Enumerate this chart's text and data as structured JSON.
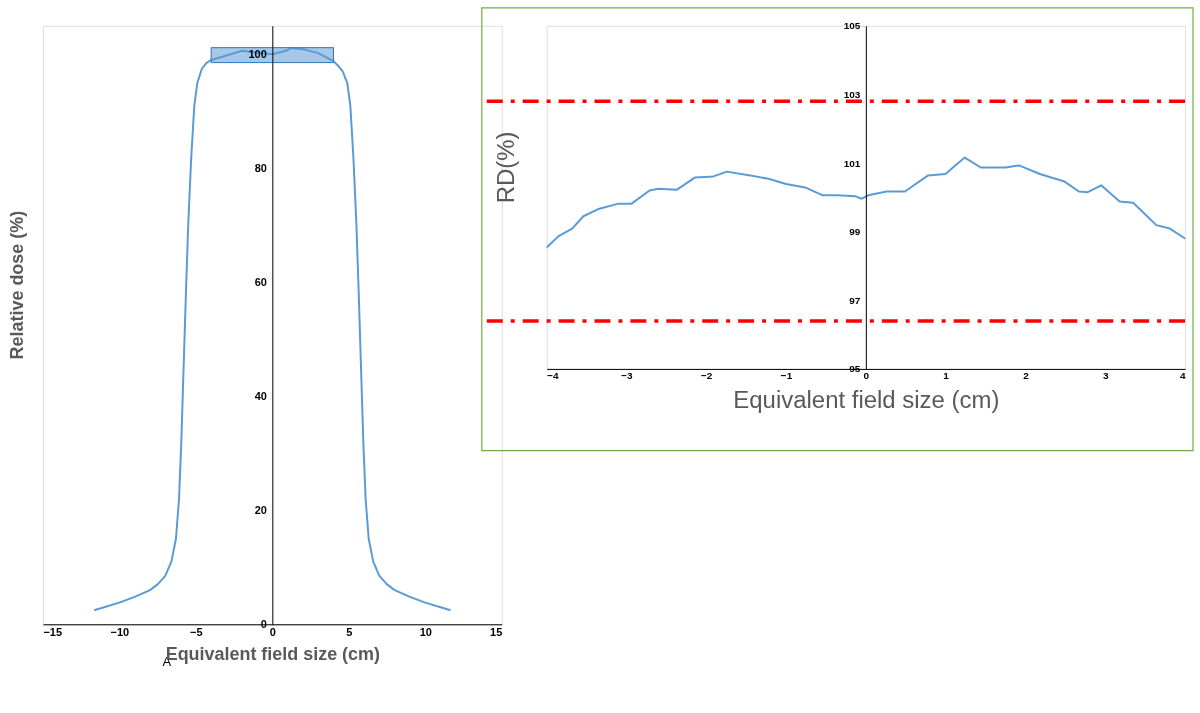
{
  "chart_data": [
    {
      "type": "line",
      "xlabel": "Equivalent field size (cm)",
      "ylabel": "Relative dose (%)",
      "annotations": [
        "A"
      ],
      "x": [
        -11.6,
        -11,
        -10,
        -9,
        -8,
        -7.5,
        -7,
        -6.6,
        -6.3,
        -6.1,
        -5.95,
        -5.8,
        -5.65,
        -5.5,
        -5.3,
        -5.1,
        -4.9,
        -4.6,
        -4.3,
        -4,
        -3,
        -2,
        -1,
        0,
        1,
        1.2,
        2,
        3,
        4,
        4.3,
        4.6,
        4.9,
        5.1,
        5.3,
        5.5,
        5.65,
        5.8,
        5.95,
        6.1,
        6.3,
        6.6,
        7,
        7.5,
        8,
        9,
        10,
        11,
        11.6
      ],
      "series": [
        {
          "color": "#5b9bd5",
          "values": [
            2.5,
            3,
            3.8,
            4.8,
            6,
            7,
            8.5,
            11,
            15,
            22,
            32,
            45,
            58,
            70,
            82,
            91,
            95,
            97.5,
            98.5,
            99,
            99.8,
            100.6,
            100.3,
            100,
            100.7,
            101.1,
            100.9,
            100.2,
            98.8,
            98,
            97,
            95,
            91,
            82,
            70,
            58,
            45,
            32,
            22,
            15,
            11,
            8.5,
            7,
            6,
            4.8,
            3.8,
            3,
            2.5
          ]
        }
      ],
      "xlim": [
        -15,
        15
      ],
      "xticks": [
        -15,
        -10,
        -5,
        0,
        5,
        10,
        15
      ],
      "ylim": [
        0,
        105
      ],
      "yticks": [
        0,
        20,
        40,
        60,
        80,
        100
      ],
      "grid": false,
      "marker": "none",
      "line_style": "solid"
    },
    {
      "type": "line",
      "xlabel": "Equivalent field size (cm)",
      "ylabel": "RD(%)",
      "x": [
        -4,
        -3.85,
        -3.68,
        -3.54,
        -3.34,
        -3.11,
        -2.94,
        -2.71,
        -2.6,
        -2.37,
        -2.14,
        -1.91,
        -1.74,
        -1.45,
        -1.22,
        -1.0,
        -0.76,
        -0.54,
        -0.36,
        -0.13,
        -0.05,
        0.03,
        0.26,
        0.49,
        0.78,
        1.0,
        1.12,
        1.24,
        1.44,
        1.75,
        1.92,
        2.18,
        2.49,
        2.67,
        2.78,
        2.95,
        3.18,
        3.35,
        3.64,
        3.81,
        4.0
      ],
      "series": [
        {
          "color": "#5b9bd5",
          "values": [
            98.54,
            98.87,
            99.09,
            99.45,
            99.67,
            99.81,
            99.81,
            100.2,
            100.25,
            100.22,
            100.58,
            100.61,
            100.75,
            100.64,
            100.54,
            100.39,
            100.29,
            100.06,
            100.06,
            100.03,
            99.96,
            100.06,
            100.17,
            100.17,
            100.64,
            100.68,
            100.93,
            101.16,
            100.87,
            100.87,
            100.93,
            100.68,
            100.46,
            100.17,
            100.15,
            100.35,
            99.88,
            99.84,
            99.19,
            99.09,
            98.8
          ]
        }
      ],
      "ref_lines": [
        {
          "axis": "y",
          "value": 102.8,
          "color": "#ff0000",
          "line_style": "dashed"
        },
        {
          "axis": "y",
          "value": 96.4,
          "color": "#ff0000",
          "line_style": "dashed"
        }
      ],
      "xlim": [
        -4,
        4
      ],
      "xticks": [
        -4,
        -3,
        -2,
        -1,
        0,
        1,
        2,
        3,
        4
      ],
      "ylim": [
        95,
        105
      ],
      "yticks": [
        95,
        97,
        99,
        101,
        103,
        105
      ],
      "grid": false,
      "marker": "none",
      "line_style": "solid"
    }
  ]
}
